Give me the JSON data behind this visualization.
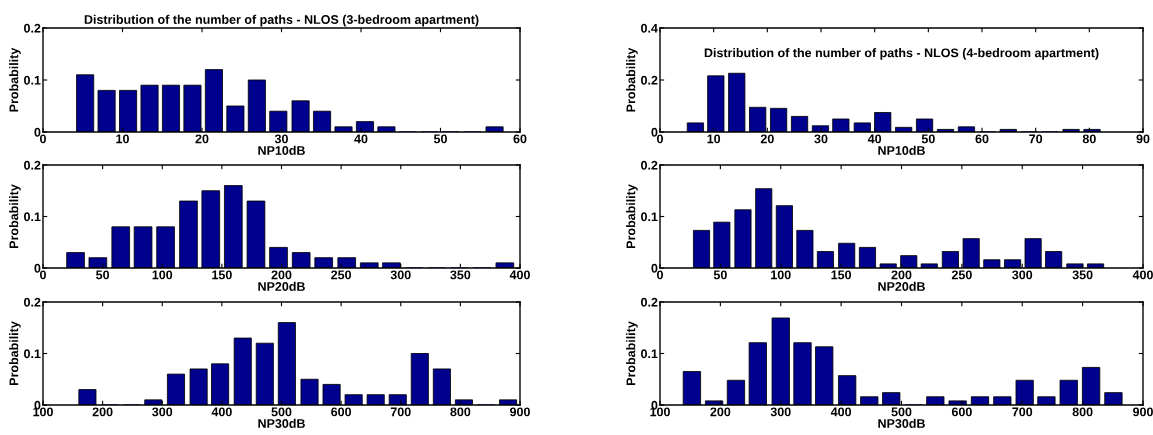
{
  "chart_data": [
    {
      "type": "bar",
      "title": "Distribution of the number of paths - NLOS (3-bedroom apartment)",
      "xlabel": "NP10dB",
      "ylabel": "Probability",
      "x": [
        5.3,
        8.0,
        10.7,
        13.4,
        16.1,
        18.8,
        21.5,
        24.2,
        26.9,
        29.6,
        32.4,
        35.1,
        37.8,
        40.5,
        43.2,
        45.9,
        48.6,
        51.3,
        54.0,
        56.8
      ],
      "series": [
        {
          "color": "#00008f",
          "values": [
            0.11,
            0.08,
            0.08,
            0.09,
            0.09,
            0.09,
            0.12,
            0.05,
            0.1,
            0.04,
            0.06,
            0.04,
            0.01,
            0.02,
            0.01,
            0,
            0,
            0,
            0,
            0.01
          ]
        }
      ],
      "xlim": [
        0,
        60
      ],
      "xticks": [
        0,
        10,
        20,
        30,
        40,
        50,
        60
      ],
      "ylim": [
        0,
        0.2
      ],
      "yticks": [
        0,
        0.1,
        0.2
      ],
      "grid": false
    },
    {
      "type": "bar",
      "title": "Distribution of the number of paths - NLOS (4-bedroom apartment)",
      "xlabel": "NP10dB",
      "ylabel": "Probability",
      "x": [
        6.6,
        10.4,
        14.3,
        18.2,
        22.1,
        26.0,
        29.9,
        33.7,
        37.7,
        41.5,
        45.4,
        49.3,
        53.2,
        57.1,
        61.0,
        64.9,
        68.8,
        72.7,
        76.6,
        80.5
      ],
      "series": [
        {
          "color": "#00008f",
          "values": [
            0.035,
            0.216,
            0.226,
            0.095,
            0.091,
            0.06,
            0.024,
            0.05,
            0.035,
            0.075,
            0.018,
            0.05,
            0.01,
            0.02,
            0,
            0.01,
            0,
            0,
            0.01,
            0.01
          ]
        }
      ],
      "xlim": [
        0,
        90
      ],
      "xticks": [
        0,
        10,
        20,
        30,
        40,
        50,
        60,
        70,
        80,
        90
      ],
      "ylim": [
        0,
        0.4
      ],
      "yticks": [
        0,
        0.2,
        0.4
      ],
      "grid": false
    },
    {
      "type": "bar",
      "xlabel": "NP20dB",
      "ylabel": "Probability",
      "x": [
        27.3,
        46.0,
        65.2,
        83.9,
        102.8,
        122.0,
        140.7,
        159.6,
        178.6,
        197.5,
        216.5,
        235.4,
        254.7,
        273.6,
        292.2,
        311.0,
        330.0,
        349.0,
        368.0,
        387.3
      ],
      "series": [
        {
          "color": "#00008f",
          "values": [
            0.03,
            0.02,
            0.08,
            0.08,
            0.08,
            0.13,
            0.15,
            0.16,
            0.13,
            0.04,
            0.03,
            0.02,
            0.02,
            0.01,
            0.01,
            0,
            0,
            0,
            0,
            0.01
          ]
        }
      ],
      "xlim": [
        0,
        400
      ],
      "xticks": [
        0,
        50,
        100,
        150,
        200,
        250,
        300,
        350,
        400
      ],
      "ylim": [
        0,
        0.2
      ],
      "yticks": [
        0,
        0.1,
        0.2
      ],
      "grid": false
    },
    {
      "type": "bar",
      "xlabel": "NP20dB",
      "ylabel": "Probability",
      "x": [
        34.4,
        51.2,
        68.7,
        85.9,
        103.0,
        120.0,
        137.0,
        154.6,
        171.8,
        189.0,
        206.0,
        223.0,
        240.5,
        257.7,
        274.8,
        292.0,
        309.0,
        326.0,
        343.6,
        360.7
      ],
      "series": [
        {
          "color": "#00008f",
          "values": [
            0.073,
            0.089,
            0.113,
            0.154,
            0.121,
            0.073,
            0.032,
            0.048,
            0.04,
            0.008,
            0.024,
            0.008,
            0.032,
            0.057,
            0.016,
            0.016,
            0.057,
            0.032,
            0.008,
            0.008
          ]
        }
      ],
      "xlim": [
        0,
        400
      ],
      "xticks": [
        0,
        50,
        100,
        150,
        200,
        250,
        300,
        350,
        400
      ],
      "ylim": [
        0,
        0.2
      ],
      "yticks": [
        0,
        0.1,
        0.2
      ],
      "grid": false
    },
    {
      "type": "bar",
      "xlabel": "NP30dB",
      "ylabel": "Probability",
      "x": [
        174.5,
        211.8,
        249.0,
        285.0,
        323.0,
        361.0,
        397.0,
        435.0,
        472.0,
        509.0,
        547.0,
        584.0,
        621.0,
        658.0,
        695.0,
        732.0,
        769.0,
        806.0,
        843.0,
        880.0
      ],
      "series": [
        {
          "color": "#00008f",
          "values": [
            0.03,
            0,
            0,
            0.01,
            0.06,
            0.07,
            0.08,
            0.13,
            0.12,
            0.16,
            0.05,
            0.04,
            0.02,
            0.02,
            0.02,
            0.1,
            0.07,
            0.01,
            0,
            0.01
          ]
        }
      ],
      "xlim": [
        100,
        900
      ],
      "xticks": [
        100,
        200,
        300,
        400,
        500,
        600,
        700,
        800,
        900
      ],
      "ylim": [
        0,
        0.2
      ],
      "yticks": [
        0,
        0.1,
        0.2
      ],
      "grid": false
    },
    {
      "type": "bar",
      "xlabel": "NP30dB",
      "ylabel": "Probability",
      "x": [
        152.8,
        189.6,
        225.8,
        262.0,
        300.0,
        336.0,
        372.0,
        410.0,
        446.6,
        483.0,
        520.0,
        556.0,
        593.0,
        630.0,
        667.0,
        704.0,
        740.0,
        777.0,
        814.0,
        851.0
      ],
      "series": [
        {
          "color": "#00008f",
          "values": [
            0.065,
            0.008,
            0.048,
            0.121,
            0.169,
            0.121,
            0.113,
            0.057,
            0.016,
            0.024,
            0,
            0.016,
            0.008,
            0.016,
            0.016,
            0.048,
            0.016,
            0.048,
            0.073,
            0.024
          ]
        }
      ],
      "xlim": [
        100,
        900
      ],
      "xticks": [
        100,
        200,
        300,
        400,
        500,
        600,
        700,
        800,
        900
      ],
      "ylim": [
        0,
        0.2
      ],
      "yticks": [
        0,
        0.1,
        0.2
      ],
      "grid": false
    }
  ]
}
